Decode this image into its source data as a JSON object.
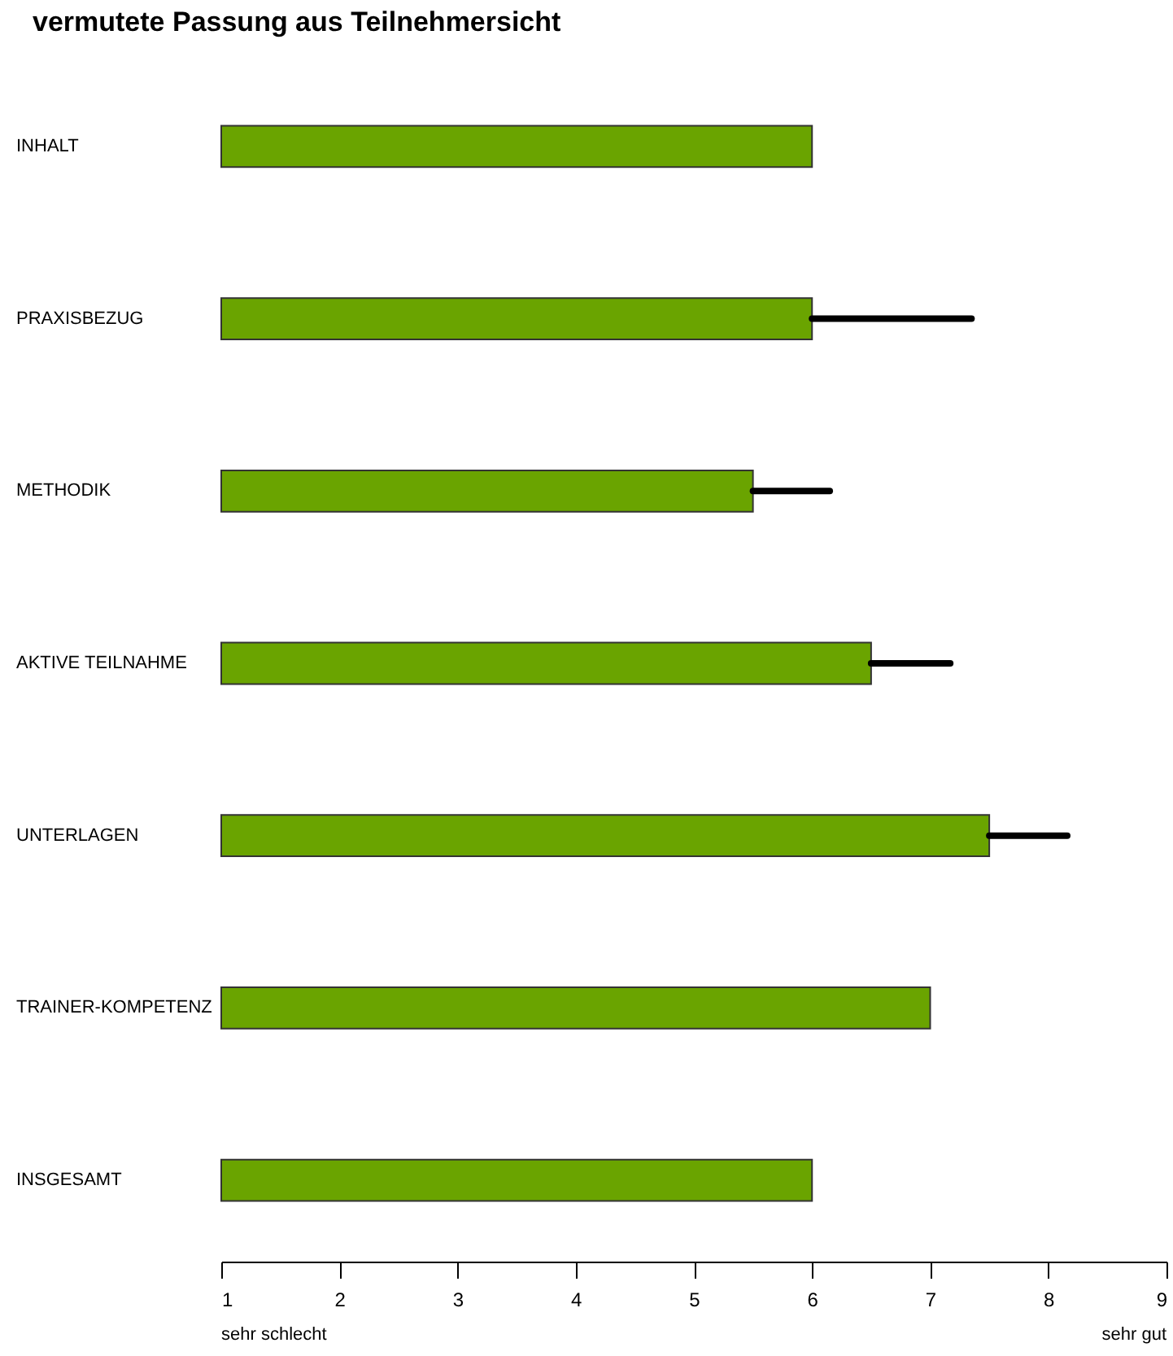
{
  "chart_data": {
    "type": "bar",
    "orientation": "horizontal",
    "title": "vermutete Passung aus Teilnehmersicht",
    "categories": [
      "INHALT",
      "PRAXISBEZUG",
      "METHODIK",
      "AKTIVE TEILNAHME",
      "UNTERLAGEN",
      "TRAINER-KOMPETENZ",
      "INSGESAMT"
    ],
    "values": [
      6,
      6,
      5.5,
      6.5,
      7.5,
      7,
      6
    ],
    "errors": [
      null,
      [
        6,
        7.35
      ],
      [
        5.5,
        6.15
      ],
      [
        6.5,
        7.17
      ],
      [
        7.5,
        8.16
      ],
      null,
      null
    ],
    "color": "#6aa400",
    "xlim": [
      1,
      9
    ],
    "xticks": [
      1,
      2,
      3,
      4,
      5,
      6,
      7,
      8,
      9
    ],
    "annotations": [
      "sehr schlecht",
      "sehr gut"
    ],
    "grid": false
  }
}
